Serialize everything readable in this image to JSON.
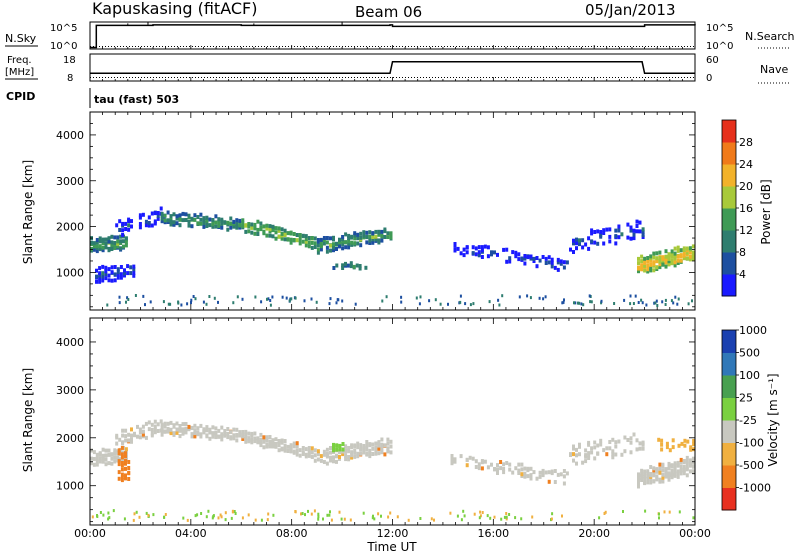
{
  "header": {
    "station": "Kapuskasing (fitACF)",
    "beam": "Beam 06",
    "date": "05/Jan/2013"
  },
  "strips": {
    "nsky_label": "N.Sky",
    "nsky_top_tick": "10^5",
    "nsky_bottom_tick": "10^0",
    "nsearch_label": "N.Search",
    "nsearch_top_tick": "10^5",
    "nsearch_bottom_tick": "10^0",
    "freq_label_1": "Freq.",
    "freq_label_2": "[MHz]",
    "freq_top_tick": "18",
    "freq_bottom_tick": "8",
    "nave_label": "Nave",
    "nave_top_tick": "60",
    "nave_bottom_tick": "0",
    "cpid_label": "CPID",
    "cpid_text": "tau (fast) 503"
  },
  "axes": {
    "ylabel": "Slant Range [km]",
    "xlabel": "Time UT",
    "x_ticks": [
      "00:00",
      "04:00",
      "08:00",
      "12:00",
      "16:00",
      "20:00",
      "00:00"
    ],
    "y_ticks": [
      "1000",
      "2000",
      "3000",
      "4000"
    ],
    "power_colorbar_label": "Power [dB]",
    "power_ticks": [
      "4",
      "8",
      "12",
      "16",
      "20",
      "24",
      "28"
    ],
    "velocity_colorbar_label": "Velocity [m s⁻¹]",
    "velocity_ticks": [
      "1000",
      "500",
      "100",
      "25",
      "-25",
      "-100",
      "-500",
      "-1000"
    ]
  },
  "colors": {
    "power_scale": [
      "#1a1aff",
      "#1d4fa0",
      "#2e7d6f",
      "#3f9a55",
      "#a8c93a",
      "#f2b22a",
      "#f07a1a",
      "#e6301c"
    ],
    "velocity_scale": [
      "#1a40b0",
      "#3078b8",
      "#48a050",
      "#7ad040",
      "#c8c8c0",
      "#f0b040",
      "#f08020",
      "#e83020"
    ]
  },
  "chart_data": [
    {
      "type": "line",
      "panel": "noise",
      "series": [
        {
          "name": "N.Sky",
          "x": [
            0,
            0.25,
            1.5,
            2.5,
            6,
            10,
            11.9,
            12,
            16,
            20,
            21.9,
            22,
            24
          ],
          "y": [
            0,
            4.6,
            4.6,
            4.7,
            4.6,
            4.6,
            4.7,
            4.4,
            4.4,
            4.4,
            4.4,
            4.7,
            4.6
          ]
        },
        {
          "name": "N.Search",
          "x": [
            0,
            24
          ],
          "y": [
            0,
            0
          ]
        }
      ],
      "xlim": [
        0,
        24
      ],
      "ylim": [
        0,
        5
      ],
      "yscale": "log"
    },
    {
      "type": "line",
      "panel": "frequency",
      "series": [
        {
          "name": "Freq.",
          "x": [
            0,
            11.9,
            12,
            21.9,
            22,
            24
          ],
          "y": [
            10.5,
            10.5,
            15.5,
            15.5,
            10.5,
            10.5
          ]
        },
        {
          "name": "Nave",
          "x": [
            0,
            12,
            24
          ],
          "y": [
            4,
            4,
            4
          ]
        }
      ],
      "xlim": [
        0,
        24
      ],
      "ylim_freq": [
        8,
        18
      ],
      "ylim_nave": [
        0,
        60
      ]
    },
    {
      "type": "heatmap",
      "panel": "power",
      "xlim": [
        0,
        24
      ],
      "ylim": [
        180,
        4500
      ],
      "colorbar": {
        "label": "Power [dB]",
        "range": [
          0,
          30
        ]
      },
      "bands": [
        {
          "x": [
            0,
            1.5
          ],
          "center": [
            1650,
            1700
          ],
          "width": 300,
          "level": 3,
          "density": 0.9
        },
        {
          "x": [
            1.0,
            3.0
          ],
          "center": [
            2000,
            2350
          ],
          "width": 300,
          "level": 1,
          "density": 0.5
        },
        {
          "x": [
            2.8,
            6.0
          ],
          "center": [
            2250,
            2100
          ],
          "width": 250,
          "level": 3,
          "density": 0.85
        },
        {
          "x": [
            6.0,
            9.0
          ],
          "center": [
            2100,
            1700
          ],
          "width": 250,
          "level": 4,
          "density": 0.9
        },
        {
          "x": [
            9.0,
            12.0
          ],
          "center": [
            1650,
            1900
          ],
          "width": 300,
          "level": 3,
          "density": 0.85
        },
        {
          "x": [
            9.5,
            11.0
          ],
          "center": [
            1200,
            1200
          ],
          "width": 120,
          "level": 3,
          "density": 0.7
        },
        {
          "x": [
            14.3,
            19.0
          ],
          "center": [
            1600,
            1200
          ],
          "width": 250,
          "level": 1,
          "density": 0.45
        },
        {
          "x": [
            19.0,
            22.0
          ],
          "center": [
            1700,
            2000
          ],
          "width": 400,
          "level": 1,
          "density": 0.35
        },
        {
          "x": [
            21.7,
            24.0
          ],
          "center": [
            1200,
            1500
          ],
          "width": 350,
          "level": 5,
          "density": 0.95
        },
        {
          "x": [
            0.2,
            1.8
          ],
          "center": [
            1000,
            1100
          ],
          "width": 300,
          "level": 1,
          "density": 0.6
        }
      ]
    },
    {
      "type": "heatmap",
      "panel": "velocity",
      "xlim": [
        0,
        24
      ],
      "ylim": [
        180,
        4500
      ],
      "colorbar": {
        "label": "Velocity [m s⁻¹]",
        "range": [
          -1000,
          1000
        ]
      },
      "bands": [
        {
          "x": [
            0,
            1.5
          ],
          "center": [
            1650,
            1700
          ],
          "width": 300,
          "level": 4,
          "density": 0.9
        },
        {
          "x": [
            1.0,
            3.0
          ],
          "center": [
            2000,
            2350
          ],
          "width": 300,
          "level": 4,
          "density": 0.5
        },
        {
          "x": [
            2.8,
            6.0
          ],
          "center": [
            2250,
            2100
          ],
          "width": 250,
          "level": 4,
          "density": 0.85
        },
        {
          "x": [
            6.0,
            9.0
          ],
          "center": [
            2100,
            1700
          ],
          "width": 250,
          "level": 4,
          "density": 0.9
        },
        {
          "x": [
            9.0,
            12.0
          ],
          "center": [
            1650,
            1900
          ],
          "width": 300,
          "level": 4,
          "density": 0.85
        },
        {
          "x": [
            14.3,
            19.0
          ],
          "center": [
            1600,
            1200
          ],
          "width": 250,
          "level": 4,
          "density": 0.45
        },
        {
          "x": [
            19.0,
            22.0
          ],
          "center": [
            1700,
            2000
          ],
          "width": 400,
          "level": 4,
          "density": 0.35
        },
        {
          "x": [
            21.7,
            24.0
          ],
          "center": [
            1200,
            1500
          ],
          "width": 350,
          "level": 4,
          "density": 0.95
        },
        {
          "x": [
            1.1,
            1.6
          ],
          "center": [
            1500,
            1500
          ],
          "width": 700,
          "level": 6,
          "density": 0.5
        },
        {
          "x": [
            9.6,
            10.1
          ],
          "center": [
            1850,
            1850
          ],
          "width": 200,
          "level": 3,
          "density": 0.8
        },
        {
          "x": [
            22.5,
            24.0
          ],
          "center": [
            1900,
            1900
          ],
          "width": 200,
          "level": 5,
          "density": 0.4
        }
      ]
    }
  ]
}
